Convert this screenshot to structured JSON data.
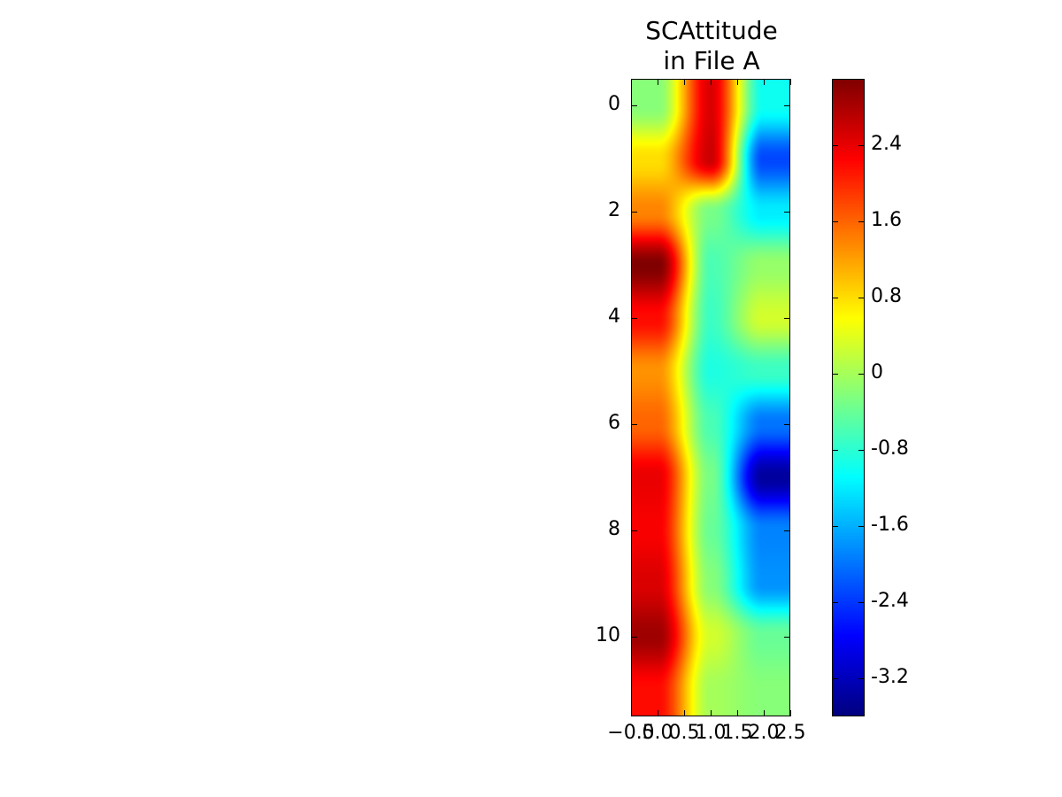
{
  "chart_data": {
    "type": "heatmap",
    "title_lines": [
      "SCAttitude",
      "in File A"
    ],
    "colormap": "jet",
    "interpolation": "bicubic",
    "extent": {
      "x": [
        -0.5,
        2.5
      ],
      "y": [
        -0.5,
        11.5
      ]
    },
    "x": [
      0,
      1,
      2
    ],
    "y": [
      0,
      1,
      2,
      3,
      4,
      5,
      6,
      7,
      8,
      9,
      10,
      11
    ],
    "values": [
      [
        -0.2,
        2.5,
        -1.0
      ],
      [
        0.8,
        2.6,
        -2.3
      ],
      [
        1.4,
        -0.3,
        -1.2
      ],
      [
        3.1,
        -0.6,
        -0.1
      ],
      [
        2.2,
        -0.7,
        0.3
      ],
      [
        1.3,
        -0.9,
        -0.7
      ],
      [
        1.6,
        -0.6,
        -2.0
      ],
      [
        2.4,
        -0.3,
        -3.4
      ],
      [
        2.3,
        -0.4,
        -1.9
      ],
      [
        2.5,
        -0.2,
        -1.8
      ],
      [
        2.9,
        0.3,
        -0.4
      ],
      [
        2.2,
        0.0,
        -0.2
      ]
    ],
    "color_range": [
      -3.6,
      3.1
    ],
    "yticks": [
      0,
      2,
      4,
      6,
      8,
      10
    ],
    "ytick_labels": [
      "0",
      "2",
      "4",
      "6",
      "8",
      "10"
    ],
    "xticks": [
      -0.5,
      0.0,
      0.5,
      1.0,
      1.5,
      2.0,
      2.5
    ],
    "xtick_labels": [
      "−0.5",
      "0.0",
      "0.5",
      "1.0",
      "1.5",
      "2.0",
      "2.5"
    ],
    "colorbar_ticks": [
      2.4,
      1.6,
      0.8,
      0,
      -0.8,
      -1.6,
      -2.4,
      -3.2
    ],
    "colorbar_tick_labels": [
      "2.4",
      "1.6",
      "0.8",
      "0",
      "-0.8",
      "-1.6",
      "-2.4",
      "-3.2"
    ],
    "grid": false
  }
}
